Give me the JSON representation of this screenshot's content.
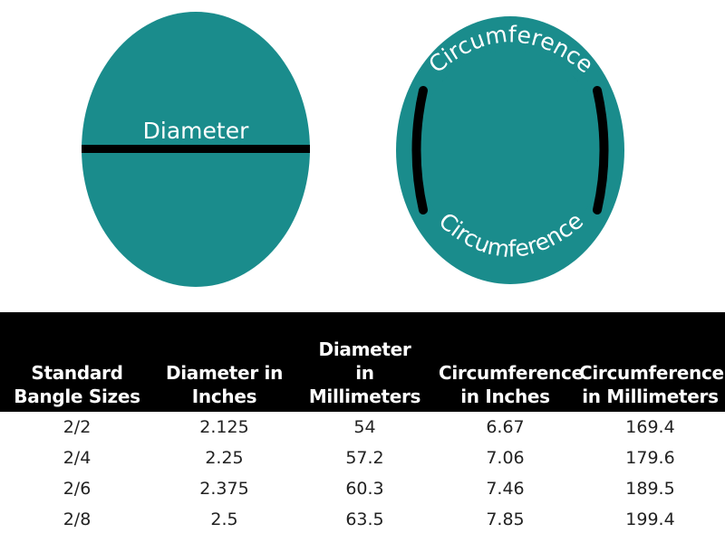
{
  "diagram": {
    "color": "#1a8c8c",
    "diameter_label": "Diameter",
    "circumference_label_top": "Circumference",
    "circumference_label_bottom": "Circumference"
  },
  "table": {
    "header_color": "#000000",
    "headers": [
      [
        "Standard",
        "Bangle Sizes"
      ],
      [
        "Diameter in",
        "Inches"
      ],
      [
        "Diameter",
        "in",
        "Millimeters"
      ],
      [
        "Circumference",
        "in Inches"
      ],
      [
        "Circumference",
        "in Millimeters"
      ]
    ],
    "rows": [
      [
        "2/2",
        "2.125",
        "54",
        "6.67",
        "169.4"
      ],
      [
        "2/4",
        "2.25",
        "57.2",
        "7.06",
        "179.6"
      ],
      [
        "2/6",
        "2.375",
        "60.3",
        "7.46",
        "189.5"
      ],
      [
        "2/8",
        "2.5",
        "63.5",
        "7.85",
        "199.4"
      ]
    ]
  }
}
